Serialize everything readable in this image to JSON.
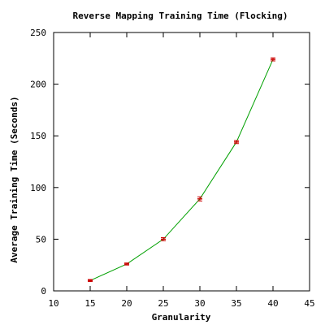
{
  "chart_data": {
    "type": "line",
    "title": "Reverse Mapping Training Time (Flocking)",
    "xlabel": "Granularity",
    "ylabel": "Average Training Time (Seconds)",
    "xlim": [
      10,
      45
    ],
    "ylim": [
      0,
      250
    ],
    "x_ticks": [
      10,
      15,
      20,
      25,
      30,
      35,
      40,
      45
    ],
    "y_ticks": [
      0,
      50,
      100,
      150,
      200,
      250
    ],
    "grid": false,
    "series": [
      {
        "x": [
          15,
          20,
          25,
          30,
          35,
          40
        ],
        "y": [
          10,
          26,
          50,
          89,
          144,
          224
        ],
        "y_err": [
          1,
          1,
          1.5,
          2,
          1.5,
          1.5
        ],
        "line_color": "#00a000",
        "marker_color": "#cc0000"
      }
    ]
  }
}
